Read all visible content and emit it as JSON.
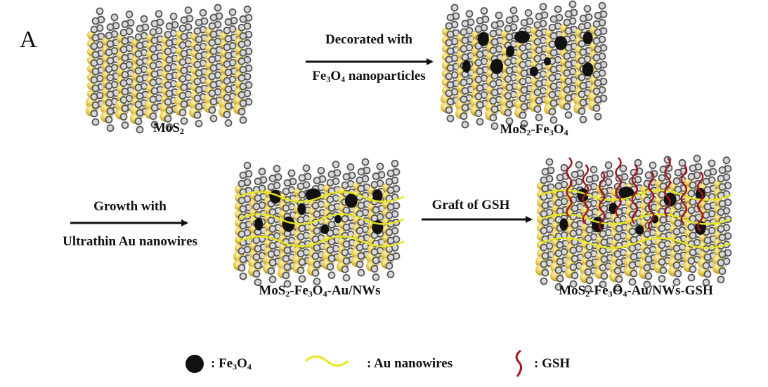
{
  "panel_label": "A",
  "steps": {
    "step1": {
      "line1": "Decorated with",
      "line2": "Fe3O4 nanoparticles"
    },
    "step2": {
      "line1": "Growth with",
      "line2": "Ultrathin Au nanowires"
    },
    "step3": {
      "line1": "Graft of GSH"
    }
  },
  "structures": {
    "s1": "MoS2",
    "s2": "MoS2-Fe3O4",
    "s3": "MoS2-Fe3O4-Au/NWs",
    "s4": "MoS2-Fe3O4-Au/NWs-GSH"
  },
  "legend": {
    "fe3o4": ": Fe3O4",
    "au": ": Au nanowires",
    "gsh": ": GSH"
  },
  "colors": {
    "fe3o4": "#111111",
    "au_nanowire": "#e6e61e",
    "gsh": "#a3171b",
    "sulfur": "#e8c84a",
    "molybdenum": "#d8d8d8"
  }
}
